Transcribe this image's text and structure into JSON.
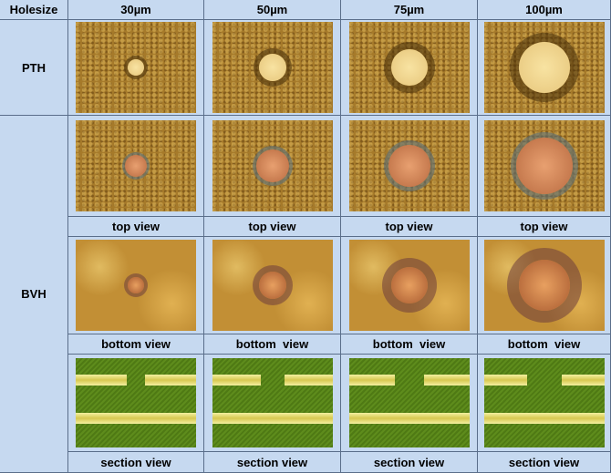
{
  "table": {
    "header": [
      "Holesize",
      "30µm",
      "50µm",
      "75µm",
      "100µm"
    ],
    "rows": [
      {
        "label": "PTH"
      },
      {
        "label": "BVH",
        "captions": [
          [
            "top view",
            "top view",
            "top view",
            "top view"
          ],
          [
            "bottom view",
            "bottom  view",
            "bottom  view",
            "bottom  view"
          ],
          [
            "section view",
            "section view",
            "section view",
            "section view"
          ]
        ]
      }
    ]
  }
}
